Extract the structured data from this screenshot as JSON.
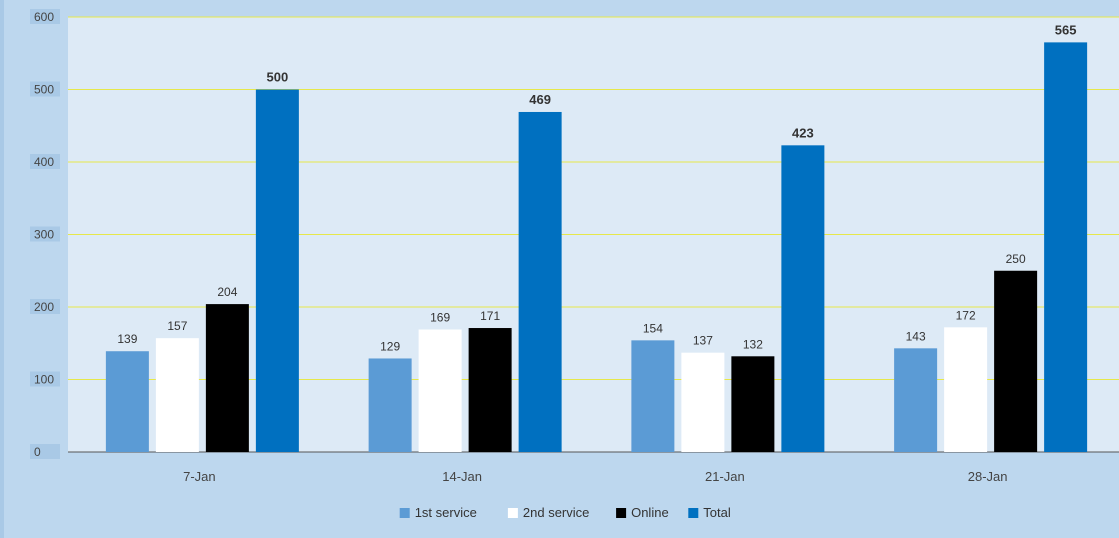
{
  "chart_data": {
    "type": "bar",
    "categories": [
      "7-Jan",
      "14-Jan",
      "21-Jan",
      "28-Jan"
    ],
    "series": [
      {
        "name": "1st service",
        "values": [
          139,
          129,
          154,
          143
        ],
        "color": "#5b9bd5",
        "label_bold": false
      },
      {
        "name": "2nd service",
        "values": [
          157,
          169,
          137,
          172
        ],
        "color": "#ffffff",
        "label_bold": false
      },
      {
        "name": "Online",
        "values": [
          204,
          171,
          132,
          250
        ],
        "color": "#000000",
        "label_bold": false
      },
      {
        "name": "Total",
        "values": [
          500,
          469,
          423,
          565
        ],
        "color": "#0070c0",
        "label_bold": true
      }
    ],
    "title": "",
    "xlabel": "",
    "ylabel": "",
    "ylim": [
      0,
      600
    ],
    "yticks": [
      0,
      100,
      200,
      300,
      400,
      500,
      600
    ],
    "grid": true,
    "gridline_color": "#e6e84a",
    "plot_background": "#ddeaf6",
    "legend_position": "bottom"
  }
}
